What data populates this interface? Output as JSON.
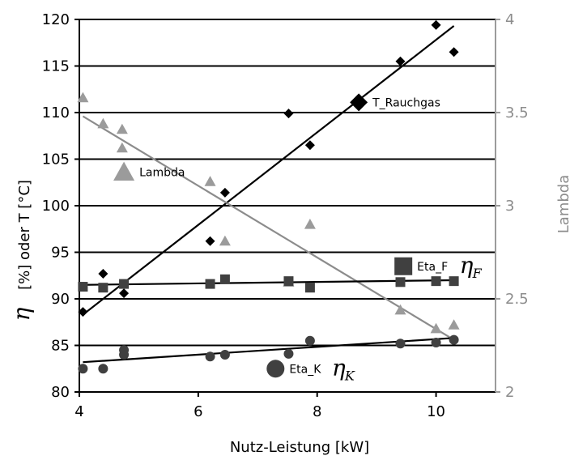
{
  "chart_data": {
    "type": "scatter",
    "xlabel": "Nutz-Leistung [kW]",
    "ylabel_left": "[%] oder T [°C]",
    "ylabel_left_symbol": "η",
    "ylabel_right": "Lambda",
    "xlim": [
      4,
      11
    ],
    "ylim_left": [
      80,
      120
    ],
    "ylim_right": [
      2,
      4
    ],
    "x_ticks": [
      4,
      6,
      8,
      10
    ],
    "y_ticks_left": [
      80,
      85,
      90,
      95,
      100,
      105,
      110,
      115,
      120
    ],
    "y_ticks_right": [
      2,
      2.5,
      3,
      3.5,
      4
    ],
    "y_tick_labels_right": [
      "2",
      "2.5",
      "3",
      "3.5",
      "4"
    ],
    "grid": "horizontal",
    "colors": {
      "black": "#000000",
      "dark_gray": "#404040",
      "gray": "#9b9b9b"
    },
    "series": [
      {
        "name": "T_Rauchgas",
        "axis": "left",
        "marker": "diamond",
        "color": "#000000",
        "points": [
          [
            4.06,
            88.6
          ],
          [
            4.4,
            92.7
          ],
          [
            4.75,
            90.6
          ],
          [
            6.2,
            96.2
          ],
          [
            6.45,
            101.4
          ],
          [
            7.52,
            109.9
          ],
          [
            7.88,
            106.5
          ],
          [
            9.4,
            115.5
          ],
          [
            10.0,
            119.4
          ],
          [
            10.3,
            116.5
          ]
        ],
        "trendline": [
          [
            4.06,
            88.3
          ],
          [
            10.3,
            119.3
          ]
        ]
      },
      {
        "name": "Lambda",
        "axis": "right",
        "marker": "triangle",
        "color": "#9b9b9b",
        "points": [
          [
            4.06,
            3.58
          ],
          [
            4.4,
            3.44
          ],
          [
            4.72,
            3.41
          ],
          [
            4.72,
            3.31
          ],
          [
            6.2,
            3.13
          ],
          [
            6.45,
            2.81
          ],
          [
            7.52,
            2.59
          ],
          [
            7.88,
            2.9
          ],
          [
            9.4,
            2.44
          ],
          [
            10.0,
            2.34
          ],
          [
            10.3,
            2.36
          ]
        ],
        "trendline": [
          [
            4.06,
            3.48
          ],
          [
            10.3,
            2.28
          ]
        ]
      },
      {
        "name": "Eta_F",
        "symbol": "η",
        "subscript": "F",
        "axis": "left",
        "marker": "square",
        "color": "#404040",
        "points": [
          [
            4.06,
            91.3
          ],
          [
            4.4,
            91.2
          ],
          [
            4.75,
            91.6
          ],
          [
            6.2,
            91.6
          ],
          [
            6.45,
            92.1
          ],
          [
            7.52,
            91.9
          ],
          [
            7.88,
            91.2
          ],
          [
            9.4,
            91.8
          ],
          [
            10.0,
            91.9
          ],
          [
            10.3,
            91.9
          ]
        ],
        "trendline": [
          [
            4.06,
            91.5
          ],
          [
            10.3,
            92.0
          ]
        ]
      },
      {
        "name": "Eta_K",
        "symbol": "η",
        "subscript": "K",
        "axis": "left",
        "marker": "circle",
        "color": "#404040",
        "points": [
          [
            4.06,
            82.5
          ],
          [
            4.4,
            82.5
          ],
          [
            4.75,
            84.0
          ],
          [
            4.75,
            84.5
          ],
          [
            6.2,
            83.8
          ],
          [
            6.45,
            84.0
          ],
          [
            7.52,
            84.1
          ],
          [
            7.88,
            85.5
          ],
          [
            9.4,
            85.2
          ],
          [
            10.0,
            85.3
          ],
          [
            10.3,
            85.6
          ]
        ],
        "trendline": [
          [
            4.06,
            83.2
          ],
          [
            10.3,
            85.8
          ]
        ]
      }
    ],
    "annotations": [
      {
        "text": "T_Rauchgas",
        "marker": "diamond",
        "x": 8.7,
        "y": 111.1,
        "axis": "left"
      },
      {
        "text": "Lambda",
        "marker": "triangle",
        "x": 4.75,
        "y": 3.18,
        "axis": "right"
      },
      {
        "text": "Eta_F",
        "marker": "square",
        "x": 9.45,
        "y": 93.5,
        "axis": "left",
        "symbol": "η",
        "subscript": "F"
      },
      {
        "text": "Eta_K",
        "marker": "circle",
        "x": 7.3,
        "y": 82.5,
        "axis": "left",
        "symbol": "η",
        "subscript": "K"
      }
    ]
  }
}
